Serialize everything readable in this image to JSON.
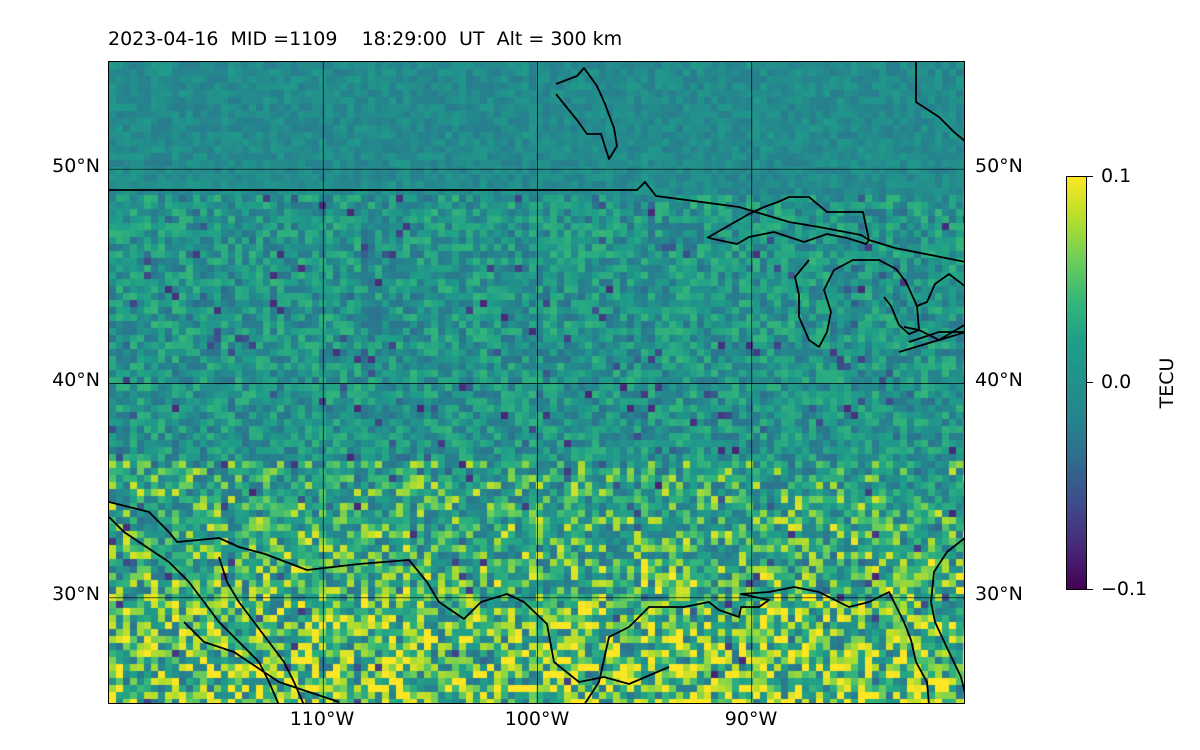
{
  "title": "2023-04-16  MID =1109    18:29:00  UT  Alt = 300 km",
  "map": {
    "lon_range": [
      -120,
      -80
    ],
    "lat_range": [
      25,
      55
    ],
    "gridlines_lon": [
      -110,
      -100,
      -90
    ],
    "gridlines_lat": [
      30,
      40,
      50
    ],
    "xtick_labels": [
      "110°W",
      "100°W",
      "90°W"
    ],
    "ytick_labels": [
      "50°N",
      "40°N",
      "30°N"
    ],
    "coastlines": "on",
    "country_borders": "on",
    "grid": "on"
  },
  "colorbar": {
    "label": "TECU",
    "ticks": [
      "0.1",
      "0.0",
      "−0.1"
    ],
    "range": [
      -0.1,
      0.1
    ],
    "colormap": "viridis"
  },
  "chart_data": {
    "type": "heatmap",
    "title": "2023-04-16  MID =1109    18:29:00  UT  Alt = 300 km",
    "xlim": [
      -120,
      -80
    ],
    "ylim": [
      25,
      55
    ],
    "zlim": [
      -0.1,
      0.1
    ],
    "colorbar_label": "TECU",
    "pattern": "Near-zero TEC perturbation over most of the US; positive (yellow) values cluster along the southern edge (Mexico / Gulf coast, south of ~32°N); scattered negative (purple) pixels across the central US"
  }
}
